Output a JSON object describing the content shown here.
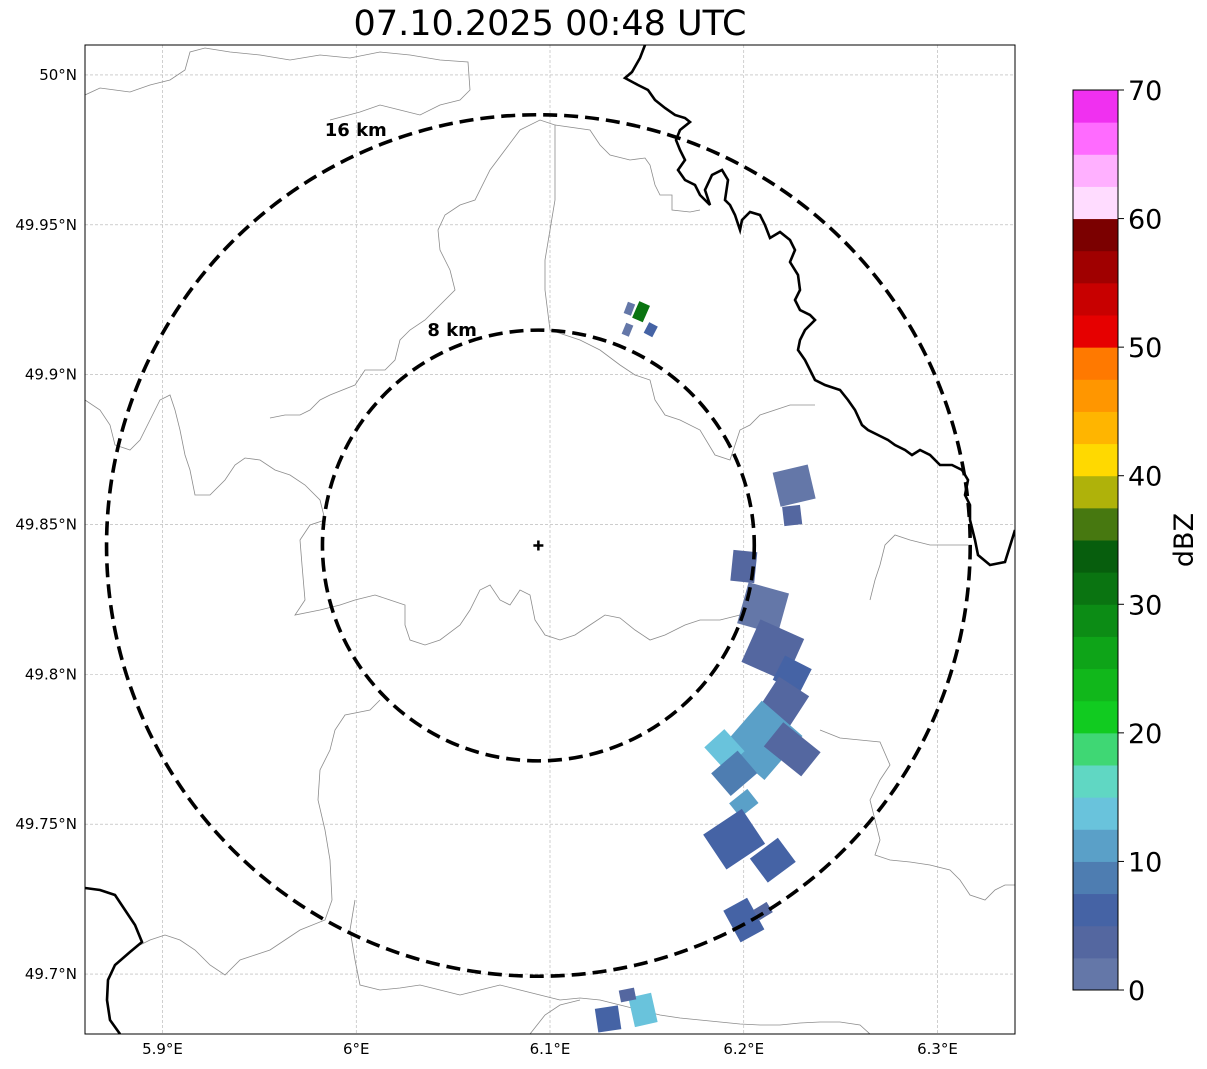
{
  "title": "07.10.2025 00:48 UTC",
  "map": {
    "lon_range": [
      5.86,
      6.34
    ],
    "lat_range": [
      49.68,
      50.01
    ],
    "lat_ticks": [
      {
        "value": 50.0,
        "label": "50°N"
      },
      {
        "value": 49.95,
        "label": "49.95°N"
      },
      {
        "value": 49.9,
        "label": "49.9°N"
      },
      {
        "value": 49.85,
        "label": "49.85°N"
      },
      {
        "value": 49.8,
        "label": "49.8°N"
      },
      {
        "value": 49.75,
        "label": "49.75°N"
      },
      {
        "value": 49.7,
        "label": "49.7°N"
      }
    ],
    "lon_ticks": [
      {
        "value": 5.9,
        "label": "5.9°E"
      },
      {
        "value": 6.0,
        "label": "6°E"
      },
      {
        "value": 6.1,
        "label": "6.1°E"
      },
      {
        "value": 6.2,
        "label": "6.2°E"
      },
      {
        "value": 6.3,
        "label": "6.3°E"
      }
    ],
    "radar_site": {
      "lon": 6.094,
      "lat": 49.843
    },
    "range_rings": [
      {
        "km": 8,
        "label": "8 km"
      },
      {
        "km": 16,
        "label": "16 km"
      }
    ],
    "grid": true
  },
  "colorbar": {
    "label": "dBZ",
    "min": 0,
    "max": 70,
    "tick_values": [
      0,
      10,
      20,
      30,
      40,
      50,
      60,
      70
    ],
    "tick_labels": [
      "0",
      "10",
      "20",
      "30",
      "40",
      "50",
      "60",
      "70"
    ],
    "colors": [
      "#6477a8",
      "#5467a0",
      "#4563a5",
      "#4e7db1",
      "#5aa0c8",
      "#69c3dc",
      "#60d7c3",
      "#3fd774",
      "#11cb20",
      "#11b71b",
      "#0ea418",
      "#0c8c15",
      "#0a7411",
      "#075e0d",
      "#477810",
      "#afb20a",
      "#ffd900",
      "#ffb500",
      "#ff9600",
      "#ff7900",
      "#e60000",
      "#c80000",
      "#a00000",
      "#7b0000",
      "#ffdcff",
      "#ffb0ff",
      "#ff6bff",
      "#f030f0"
    ]
  },
  "echoes": [
    {
      "lon": 6.147,
      "lat": 49.921,
      "dbz": 30,
      "w": 0.006,
      "h": 0.006
    },
    {
      "lon": 6.152,
      "lat": 49.915,
      "dbz": 5,
      "w": 0.005,
      "h": 0.004
    },
    {
      "lon": 6.141,
      "lat": 49.922,
      "dbz": 2,
      "w": 0.004,
      "h": 0.004
    },
    {
      "lon": 6.14,
      "lat": 49.915,
      "dbz": 2,
      "w": 0.004,
      "h": 0.004
    },
    {
      "lon": 6.226,
      "lat": 49.863,
      "dbz": 2,
      "w": 0.018,
      "h": 0.012
    },
    {
      "lon": 6.225,
      "lat": 49.853,
      "dbz": 3,
      "w": 0.01,
      "h": 0.006
    },
    {
      "lon": 6.2,
      "lat": 49.836,
      "dbz": 3,
      "w": 0.016,
      "h": 0.008
    },
    {
      "lon": 6.21,
      "lat": 49.822,
      "dbz": 2,
      "w": 0.022,
      "h": 0.014
    },
    {
      "lon": 6.215,
      "lat": 49.808,
      "dbz": 3,
      "w": 0.024,
      "h": 0.016
    },
    {
      "lon": 6.225,
      "lat": 49.8,
      "dbz": 5,
      "w": 0.014,
      "h": 0.01
    },
    {
      "lon": 6.22,
      "lat": 49.79,
      "dbz": 4,
      "w": 0.022,
      "h": 0.012
    },
    {
      "lon": 6.21,
      "lat": 49.778,
      "dbz": 10,
      "w": 0.03,
      "h": 0.018
    },
    {
      "lon": 6.225,
      "lat": 49.775,
      "dbz": 4,
      "w": 0.016,
      "h": 0.016
    },
    {
      "lon": 6.19,
      "lat": 49.775,
      "dbz": 13,
      "w": 0.014,
      "h": 0.01
    },
    {
      "lon": 6.195,
      "lat": 49.767,
      "dbz": 8,
      "w": 0.018,
      "h": 0.01
    },
    {
      "lon": 6.2,
      "lat": 49.757,
      "dbz": 12,
      "w": 0.012,
      "h": 0.006
    },
    {
      "lon": 6.195,
      "lat": 49.745,
      "dbz": 7,
      "w": 0.024,
      "h": 0.014
    },
    {
      "lon": 6.215,
      "lat": 49.738,
      "dbz": 6,
      "w": 0.018,
      "h": 0.01
    },
    {
      "lon": 6.2,
      "lat": 49.718,
      "dbz": 5,
      "w": 0.014,
      "h": 0.012
    },
    {
      "lon": 6.21,
      "lat": 49.721,
      "dbz": 3,
      "w": 0.008,
      "h": 0.004
    },
    {
      "lon": 6.148,
      "lat": 49.688,
      "dbz": 14,
      "w": 0.012,
      "h": 0.01
    },
    {
      "lon": 6.13,
      "lat": 49.685,
      "dbz": 5,
      "w": 0.012,
      "h": 0.008
    },
    {
      "lon": 6.14,
      "lat": 49.693,
      "dbz": 3,
      "w": 0.008,
      "h": 0.004
    }
  ]
}
